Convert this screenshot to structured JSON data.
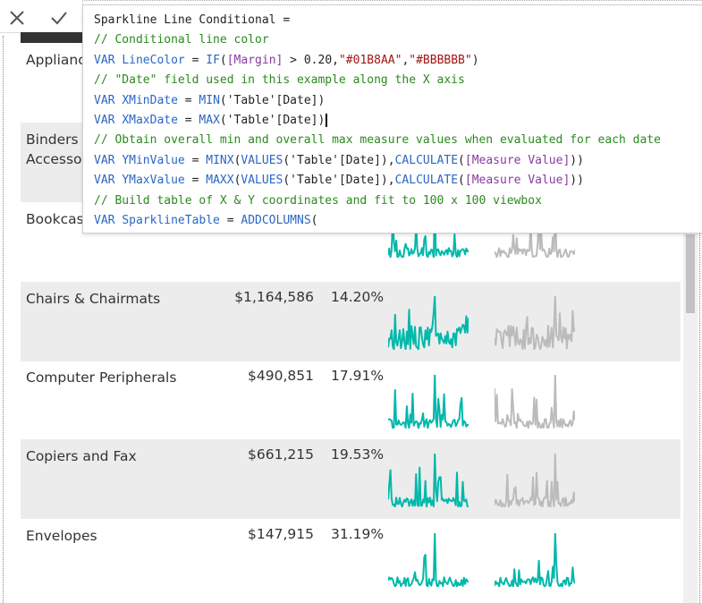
{
  "formula_bar": {
    "cancel_icon": "close-icon",
    "commit_icon": "checkmark-icon",
    "code_lines": [
      [
        {
          "t": "pl",
          "v": "Sparkline Line Conditional ="
        }
      ],
      [
        {
          "t": "cm",
          "v": "// Conditional line color"
        }
      ],
      [
        {
          "t": "kw",
          "v": "VAR "
        },
        {
          "t": "kw",
          "v": "LineColor"
        },
        {
          "t": "pl",
          "v": " = "
        },
        {
          "t": "fn",
          "v": "IF"
        },
        {
          "t": "pl",
          "v": "("
        },
        {
          "t": "ms",
          "v": "[Margin]"
        },
        {
          "t": "pl",
          "v": " > 0.20,"
        },
        {
          "t": "st",
          "v": "\"#01B8AA\""
        },
        {
          "t": "pl",
          "v": ","
        },
        {
          "t": "st",
          "v": "\"#BBBBBB\""
        },
        {
          "t": "pl",
          "v": ")"
        }
      ],
      [
        {
          "t": "cm",
          "v": "// \"Date\" field used in this example along the X axis"
        }
      ],
      [
        {
          "t": "kw",
          "v": "VAR "
        },
        {
          "t": "kw",
          "v": "XMinDate"
        },
        {
          "t": "pl",
          "v": " = "
        },
        {
          "t": "fn",
          "v": "MIN"
        },
        {
          "t": "pl",
          "v": "('Table'[Date])"
        }
      ],
      [
        {
          "t": "kw",
          "v": "VAR "
        },
        {
          "t": "kw",
          "v": "XMaxDate"
        },
        {
          "t": "pl",
          "v": " = "
        },
        {
          "t": "fn",
          "v": "MAX"
        },
        {
          "t": "pl",
          "v": "('Table'[Date])"
        }
      ],
      [
        {
          "t": "cm",
          "v": "// Obtain overall min and overall max measure values when evaluated for each date"
        }
      ],
      [
        {
          "t": "kw",
          "v": "VAR "
        },
        {
          "t": "kw",
          "v": "YMinValue"
        },
        {
          "t": "pl",
          "v": " = "
        },
        {
          "t": "fn",
          "v": "MINX"
        },
        {
          "t": "pl",
          "v": "("
        },
        {
          "t": "fn",
          "v": "VALUES"
        },
        {
          "t": "pl",
          "v": "('Table'[Date]),"
        },
        {
          "t": "fn",
          "v": "CALCULATE"
        },
        {
          "t": "pl",
          "v": "("
        },
        {
          "t": "ms",
          "v": "[Measure Value]"
        },
        {
          "t": "pl",
          "v": "))"
        }
      ],
      [
        {
          "t": "kw",
          "v": "VAR "
        },
        {
          "t": "kw",
          "v": "YMaxValue"
        },
        {
          "t": "pl",
          "v": " = "
        },
        {
          "t": "fn",
          "v": "MAXX"
        },
        {
          "t": "pl",
          "v": "("
        },
        {
          "t": "fn",
          "v": "VALUES"
        },
        {
          "t": "pl",
          "v": "('Table'[Date]),"
        },
        {
          "t": "fn",
          "v": "CALCULATE"
        },
        {
          "t": "pl",
          "v": "("
        },
        {
          "t": "ms",
          "v": "[Measure Value]"
        },
        {
          "t": "pl",
          "v": "))"
        }
      ],
      [
        {
          "t": "cm",
          "v": "// Build table of X & Y coordinates and fit to 100 x 100 viewbox"
        }
      ],
      [
        {
          "t": "kw",
          "v": "VAR "
        },
        {
          "t": "kw",
          "v": "SparklineTable"
        },
        {
          "t": "pl",
          "v": " = "
        },
        {
          "t": "fn",
          "v": "ADDCOLUMNS"
        },
        {
          "t": "pl",
          "v": "("
        }
      ]
    ],
    "cursor_line": 5
  },
  "table": {
    "rows": [
      {
        "name": "Applianc",
        "sales": "",
        "margin": "",
        "shaded": false,
        "color1": "#01B8AA",
        "color2": "#BBBBBB"
      },
      {
        "name": "Binders a\nAccessor",
        "sales": "",
        "margin": "",
        "shaded": true,
        "color1": "#01B8AA",
        "color2": "#BBBBBB"
      },
      {
        "name": "Bookcas",
        "sales": "",
        "margin": "",
        "shaded": false,
        "color1": "#01B8AA",
        "color2": "#BBBBBB"
      },
      {
        "name": "Chairs & Chairmats",
        "sales": "$1,164,586",
        "margin": "14.20%",
        "shaded": true,
        "color1": "#01B8AA",
        "color2": "#BBBBBB"
      },
      {
        "name": "Computer Peripherals",
        "sales": "$490,851",
        "margin": "17.91%",
        "shaded": false,
        "color1": "#01B8AA",
        "color2": "#BBBBBB"
      },
      {
        "name": "Copiers and Fax",
        "sales": "$661,215",
        "margin": "19.53%",
        "shaded": true,
        "color1": "#01B8AA",
        "color2": "#BBBBBB"
      },
      {
        "name": "Envelopes",
        "sales": "$147,915",
        "margin": "31.19%",
        "shaded": false,
        "color1": "#01B8AA",
        "color2": "#01B8AA"
      }
    ]
  }
}
